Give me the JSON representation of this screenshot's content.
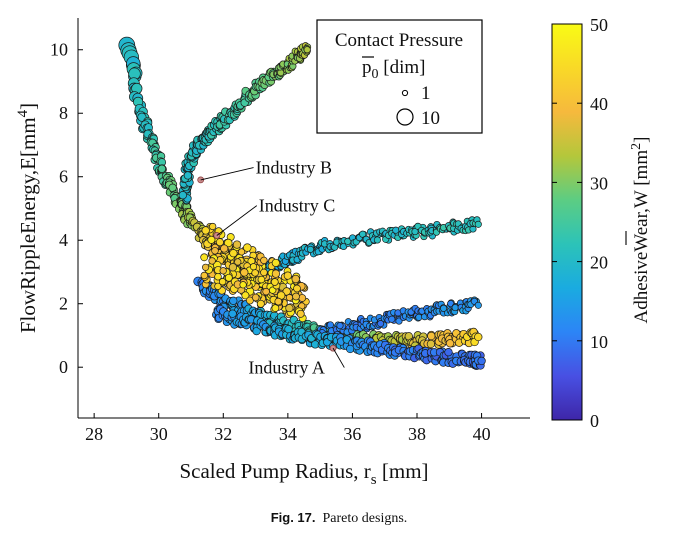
{
  "caption": {
    "label": "Fig. 17.",
    "text": "Pareto designs."
  },
  "chart_data": {
    "type": "scatter",
    "xlabel": "Scaled Pump Radius, r",
    "xlabel_sub": "s",
    "xlabel_unit": "[mm]",
    "ylabel": "FlowRippleEnergy,E[mm",
    "ylabel_sup": "4",
    "ylabel_close": "]",
    "xlim": [
      27.5,
      41.5
    ],
    "ylim": [
      -1.6,
      11
    ],
    "xticks": [
      "28",
      "30",
      "32",
      "34",
      "36",
      "38",
      "40"
    ],
    "yticks": [
      "0",
      "2",
      "4",
      "6",
      "8",
      "10"
    ],
    "colorbar": {
      "label": "AdhesiveWear,",
      "symbol": "W",
      "unit": "[mm",
      "sup": "2",
      "close": "]",
      "min": 0,
      "max": 50,
      "ticks": [
        "0",
        "10",
        "20",
        "30",
        "40",
        "50"
      ],
      "colormap": [
        "#3e26a8",
        "#4850e3",
        "#2c85f6",
        "#1aabe0",
        "#2cc3b8",
        "#5ccd83",
        "#b4c73b",
        "#f6b93d",
        "#f9d927",
        "#f9fb15"
      ]
    },
    "size_legend": {
      "title": "Contact Pressure",
      "symbol": "p",
      "sub": "0",
      "unit": "[dim]",
      "entries": [
        {
          "label": "1",
          "value": 1
        },
        {
          "label": "10",
          "value": 10
        }
      ]
    },
    "annotations": [
      {
        "text": "Industry A",
        "point": [
          35.4,
          0.6
        ],
        "label_at": [
          32.9,
          -0.2
        ]
      },
      {
        "text": "Industry B",
        "point": [
          31.3,
          5.9
        ],
        "label_at": [
          33.0,
          6.1
        ]
      },
      {
        "text": "Industry C",
        "point": [
          31.8,
          4.15
        ],
        "label_at": [
          33.1,
          4.9
        ]
      }
    ],
    "series": [
      {
        "segments": [
          {
            "x": [
              29.1,
              29.25,
              29.45,
              29.8,
              30.2,
              30.6,
              31.0,
              31.5,
              32.0,
              32.5,
              33.0,
              33.4,
              33.7
            ],
            "y": [
              10.0,
              9.0,
              8.0,
              7.0,
              6.0,
              5.2,
              4.6,
              4.0,
              3.5,
              3.1,
              2.8,
              2.55,
              2.4
            ],
            "wear": [
              20,
              20,
              21,
              23,
              26,
              29,
              32,
              37,
              41,
              44,
              46,
              47,
              47
            ],
            "pressure": [
              10,
              6,
              4,
              3,
              3,
              3,
              3,
              3,
              3,
              3,
              3,
              3,
              3
            ]
          },
          {
            "x": [
              30.8,
              30.9,
              31.1,
              31.4,
              31.8,
              32.3,
              32.8,
              33.3,
              33.8,
              34.3,
              34.6
            ],
            "y": [
              5.4,
              6.2,
              6.8,
              7.2,
              7.6,
              8.0,
              8.6,
              9.0,
              9.4,
              9.8,
              10.0
            ],
            "wear": [
              20,
              20,
              21,
              21,
              22,
              24,
              26,
              28,
              30,
              32,
              33
            ],
            "pressure": [
              3,
              3,
              3,
              3,
              3,
              3,
              3,
              3,
              2,
              2,
              2
            ]
          },
          {
            "x": [
              33.0,
              33.5,
              34.2,
              35.0,
              36.0,
              37.0,
              38.0,
              39.0,
              39.9
            ],
            "y": [
              2.9,
              3.2,
              3.5,
              3.8,
              4.0,
              4.15,
              4.25,
              4.4,
              4.5
            ],
            "wear": [
              15,
              17,
              18,
              19,
              20,
              20,
              21,
              22,
              22
            ],
            "pressure": [
              2,
              2,
              2,
              2,
              2,
              2,
              2,
              2,
              2
            ]
          },
          {
            "x": [
              31.3,
              32.0,
              33.0,
              34.0,
              35.0,
              36.0,
              37.0,
              38.0,
              39.0,
              39.9
            ],
            "y": [
              2.6,
              2.1,
              1.7,
              1.35,
              1.1,
              0.95,
              0.85,
              0.85,
              0.9,
              0.95
            ],
            "wear": [
              11,
              13,
              16,
              20,
              25,
              30,
              33,
              36,
              40,
              44
            ],
            "pressure": [
              4,
              3,
              3,
              3,
              3,
              3,
              3,
              3,
              3,
              3
            ]
          },
          {
            "x": [
              35.0,
              36.0,
              37.0,
              38.0,
              39.0,
              39.9
            ],
            "y": [
              1.1,
              1.3,
              1.5,
              1.7,
              1.85,
              1.95
            ],
            "wear": [
              12,
              11,
              11,
              12,
              13,
              14
            ],
            "pressure": [
              2,
              2,
              2,
              2,
              2,
              2
            ]
          },
          {
            "x": [
              31.8,
              32.5,
              33.5,
              34.5,
              35.5,
              36.5,
              37.5,
              38.5,
              39.5,
              40.0
            ],
            "y": [
              1.75,
              1.45,
              1.2,
              0.95,
              0.8,
              0.65,
              0.5,
              0.35,
              0.25,
              0.2
            ],
            "wear": [
              12,
              14,
              16,
              18,
              15,
              12,
              10,
              9,
              9,
              9
            ],
            "pressure": [
              3,
              3,
              3,
              3,
              3,
              3,
              3,
              3,
              3,
              3
            ]
          }
        ]
      },
      {
        "cloud": {
          "x_range": [
            31.4,
            34.6
          ],
          "y_center": [
            3.6,
            2.1
          ],
          "wear_range": [
            36,
            48
          ],
          "pressure": 2
        }
      }
    ]
  }
}
